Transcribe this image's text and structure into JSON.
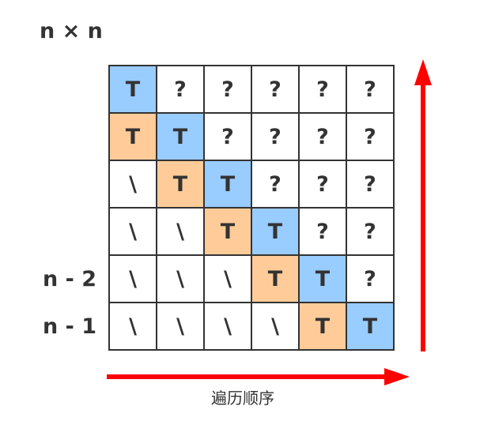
{
  "title": "n × n",
  "row_labels": [
    "n - 2",
    "n - 1"
  ],
  "caption": "遍历顺序",
  "colors": {
    "diagonal": "#99ccff",
    "sub_diagonal": "#ffcc99",
    "arrow": "#ff0000",
    "border": "#333333"
  },
  "grid": [
    [
      {
        "t": "T",
        "c": "blue"
      },
      {
        "t": "?",
        "c": ""
      },
      {
        "t": "?",
        "c": ""
      },
      {
        "t": "?",
        "c": ""
      },
      {
        "t": "?",
        "c": ""
      },
      {
        "t": "?",
        "c": ""
      }
    ],
    [
      {
        "t": "T",
        "c": "orange"
      },
      {
        "t": "T",
        "c": "blue"
      },
      {
        "t": "?",
        "c": ""
      },
      {
        "t": "?",
        "c": ""
      },
      {
        "t": "?",
        "c": ""
      },
      {
        "t": "?",
        "c": ""
      }
    ],
    [
      {
        "t": "\\",
        "c": ""
      },
      {
        "t": "T",
        "c": "orange"
      },
      {
        "t": "T",
        "c": "blue"
      },
      {
        "t": "?",
        "c": ""
      },
      {
        "t": "?",
        "c": ""
      },
      {
        "t": "?",
        "c": ""
      }
    ],
    [
      {
        "t": "\\",
        "c": ""
      },
      {
        "t": "\\",
        "c": ""
      },
      {
        "t": "T",
        "c": "orange"
      },
      {
        "t": "T",
        "c": "blue"
      },
      {
        "t": "?",
        "c": ""
      },
      {
        "t": "?",
        "c": ""
      }
    ],
    [
      {
        "t": "\\",
        "c": ""
      },
      {
        "t": "\\",
        "c": ""
      },
      {
        "t": "\\",
        "c": ""
      },
      {
        "t": "T",
        "c": "orange"
      },
      {
        "t": "T",
        "c": "blue"
      },
      {
        "t": "?",
        "c": ""
      }
    ],
    [
      {
        "t": "\\",
        "c": ""
      },
      {
        "t": "\\",
        "c": ""
      },
      {
        "t": "\\",
        "c": ""
      },
      {
        "t": "\\",
        "c": ""
      },
      {
        "t": "T",
        "c": "orange"
      },
      {
        "t": "T",
        "c": "blue"
      }
    ]
  ]
}
